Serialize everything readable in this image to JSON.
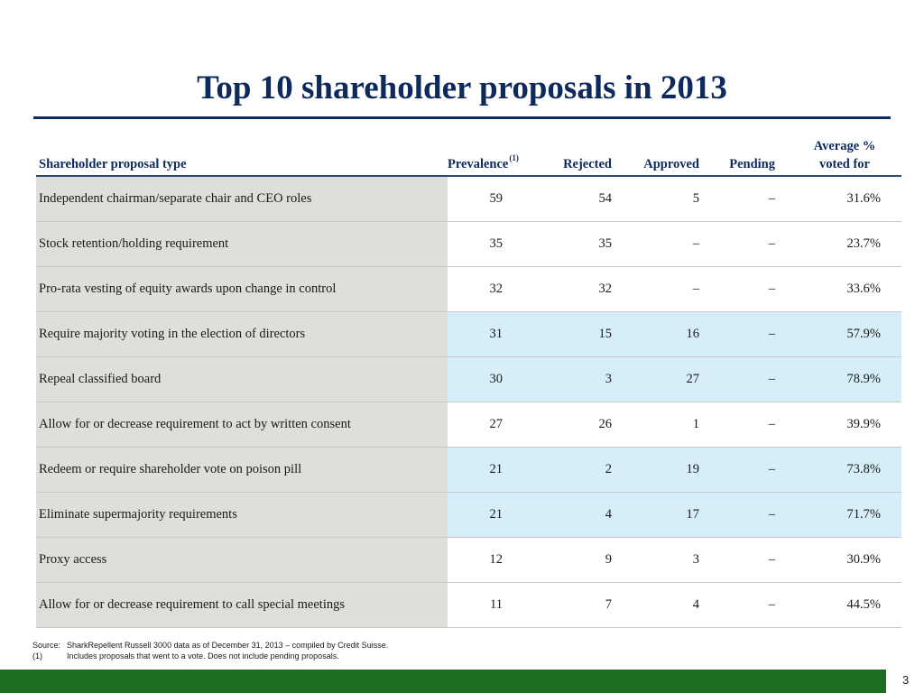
{
  "title": "Top 10 shareholder proposals in 2013",
  "table": {
    "headers": {
      "type": "Shareholder proposal type",
      "prevalence": "Prevalence",
      "prevalence_note": "(1)",
      "rejected": "Rejected",
      "approved": "Approved",
      "pending": "Pending",
      "avg_line1": "Average %",
      "avg_line2": "voted for"
    },
    "rows": [
      {
        "type": "Independent chairman/separate chair and CEO roles",
        "prevalence": "59",
        "rejected": "54",
        "approved": "5",
        "pending": "–",
        "avg": "31.6%",
        "highlight": false
      },
      {
        "type": "Stock retention/holding requirement",
        "prevalence": "35",
        "rejected": "35",
        "approved": "–",
        "pending": "–",
        "avg": "23.7%",
        "highlight": false
      },
      {
        "type": "Pro-rata vesting of equity awards upon change in control",
        "prevalence": "32",
        "rejected": "32",
        "approved": "–",
        "pending": "–",
        "avg": "33.6%",
        "highlight": false
      },
      {
        "type": "Require majority voting in the election of directors",
        "prevalence": "31",
        "rejected": "15",
        "approved": "16",
        "pending": "–",
        "avg": "57.9%",
        "highlight": true
      },
      {
        "type": "Repeal classified board",
        "prevalence": "30",
        "rejected": "3",
        "approved": "27",
        "pending": "–",
        "avg": "78.9%",
        "highlight": true
      },
      {
        "type": "Allow for or decrease requirement to act by written consent",
        "prevalence": "27",
        "rejected": "26",
        "approved": "1",
        "pending": "–",
        "avg": "39.9%",
        "highlight": false
      },
      {
        "type": "Redeem or require shareholder vote on poison pill",
        "prevalence": "21",
        "rejected": "2",
        "approved": "19",
        "pending": "–",
        "avg": "73.8%",
        "highlight": true
      },
      {
        "type": "Eliminate supermajority requirements",
        "prevalence": "21",
        "rejected": "4",
        "approved": "17",
        "pending": "–",
        "avg": "71.7%",
        "highlight": true
      },
      {
        "type": "Proxy access",
        "prevalence": "12",
        "rejected": "9",
        "approved": "3",
        "pending": "–",
        "avg": "30.9%",
        "highlight": false
      },
      {
        "type": "Allow for or decrease requirement to call special meetings",
        "prevalence": "11",
        "rejected": "7",
        "approved": "4",
        "pending": "–",
        "avg": "44.5%",
        "highlight": false
      }
    ]
  },
  "notes": {
    "source_label": "Source:",
    "source_text": "SharkRepellent Russell 3000 data as of December 31, 2013 – compiled by Credit Suisse.",
    "note1_label": "(1)",
    "note1_text": "Includes proposals that went to a vote. Does not include pending proposals."
  },
  "page_number": "3",
  "colors": {
    "title": "#0e2a5c",
    "type_column_bg": "#e0dedb",
    "highlight_bg": "#d5eef8",
    "footer_bar": "#1e6b22"
  }
}
